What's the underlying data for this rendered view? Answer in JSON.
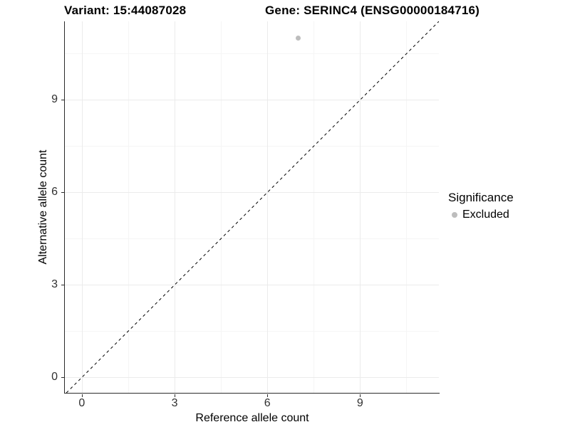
{
  "chart_data": {
    "type": "scatter",
    "title_left": "Variant: 15:44087028",
    "title_right": "Gene: SERINC4 (ENSG00000184716)",
    "xlabel": "Reference allele count",
    "ylabel": "Alternative allele count",
    "x_ticks": [
      0,
      3,
      6,
      9
    ],
    "y_ticks": [
      0,
      3,
      6,
      9
    ],
    "x_minor_ticks": [
      1.5,
      4.5,
      7.5,
      10.5
    ],
    "y_minor_ticks": [
      1.5,
      4.5,
      7.5,
      10.5
    ],
    "xlim": [
      -0.55,
      11.55
    ],
    "ylim": [
      -0.5,
      11.55
    ],
    "grid": true,
    "identity_line": {
      "slope": 1,
      "intercept": 0,
      "style": "dashed",
      "color": "#000000"
    },
    "points": [
      {
        "x": 7,
        "y": 11,
        "series": "Excluded"
      }
    ],
    "legend": {
      "title": "Significance",
      "position": "right",
      "entries": [
        {
          "label": "Excluded",
          "color": "#bdbdbd"
        }
      ]
    },
    "colors": {
      "axis_line": "#2b2b2b",
      "grid_major": "#ebebeb",
      "grid_minor": "#f5f5f5",
      "tick_text": "#303030"
    }
  }
}
